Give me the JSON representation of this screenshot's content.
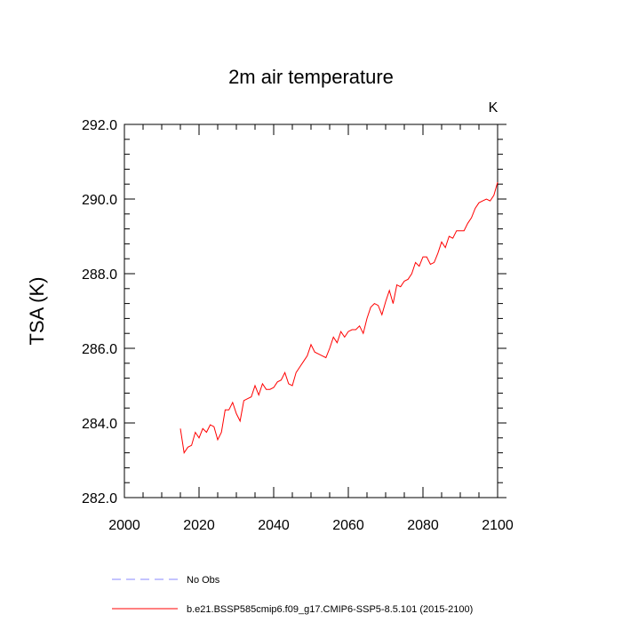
{
  "chart_data": {
    "type": "line",
    "title": "2m air temperature",
    "units_label": "K",
    "xlabel": "",
    "ylabel": "TSA  (K)",
    "xlim": [
      2000,
      2100
    ],
    "ylim": [
      282.0,
      292.0
    ],
    "x_ticks": [
      2000,
      2020,
      2040,
      2060,
      2080,
      2100
    ],
    "x_tick_labels": [
      "2000",
      "2020",
      "2040",
      "2060",
      "2080",
      "2100"
    ],
    "y_ticks": [
      282.0,
      284.0,
      286.0,
      288.0,
      290.0,
      292.0
    ],
    "y_tick_labels": [
      "282.0",
      "284.0",
      "286.0",
      "288.0",
      "290.0",
      "292.0"
    ],
    "grid": false,
    "legend_position": "bottom",
    "series": [
      {
        "name": "b.e21.BSSP585cmip6.f09_g17.CMIP6-SSP5-8.5.101 (2015-2100)",
        "color": "#ff0000",
        "style": "solid",
        "x": [
          2015,
          2016,
          2017,
          2018,
          2019,
          2020,
          2021,
          2022,
          2023,
          2024,
          2025,
          2026,
          2027,
          2028,
          2029,
          2030,
          2031,
          2032,
          2033,
          2034,
          2035,
          2036,
          2037,
          2038,
          2039,
          2040,
          2041,
          2042,
          2043,
          2044,
          2045,
          2046,
          2047,
          2048,
          2049,
          2050,
          2051,
          2052,
          2053,
          2054,
          2055,
          2056,
          2057,
          2058,
          2059,
          2060,
          2061,
          2062,
          2063,
          2064,
          2065,
          2066,
          2067,
          2068,
          2069,
          2070,
          2071,
          2072,
          2073,
          2074,
          2075,
          2076,
          2077,
          2078,
          2079,
          2080,
          2081,
          2082,
          2083,
          2084,
          2085,
          2086,
          2087,
          2088,
          2089,
          2090,
          2091,
          2092,
          2093,
          2094,
          2095,
          2096,
          2097,
          2098,
          2099,
          2100
        ],
        "y": [
          283.85,
          283.2,
          283.35,
          283.4,
          283.75,
          283.6,
          283.85,
          283.75,
          283.95,
          283.9,
          283.55,
          283.75,
          284.35,
          284.35,
          284.55,
          284.25,
          284.05,
          284.6,
          284.65,
          284.7,
          285.0,
          284.75,
          285.05,
          284.9,
          284.9,
          284.95,
          285.1,
          285.15,
          285.35,
          285.05,
          285.0,
          285.35,
          285.5,
          285.65,
          285.8,
          286.1,
          285.9,
          285.85,
          285.8,
          285.75,
          286.0,
          286.3,
          286.15,
          286.45,
          286.3,
          286.45,
          286.5,
          286.5,
          286.6,
          286.4,
          286.8,
          287.1,
          287.2,
          287.15,
          286.9,
          287.25,
          287.55,
          287.2,
          287.7,
          287.65,
          287.8,
          287.85,
          288.0,
          288.3,
          288.2,
          288.45,
          288.45,
          288.25,
          288.3,
          288.55,
          288.85,
          288.7,
          289.0,
          288.95,
          289.15,
          289.15,
          289.15,
          289.35,
          289.5,
          289.75,
          289.9,
          289.95,
          290.0,
          289.95,
          290.1,
          290.45
        ]
      },
      {
        "name": "No Obs",
        "color": "#8888ff",
        "style": "dashed",
        "x": [],
        "y": []
      }
    ]
  }
}
